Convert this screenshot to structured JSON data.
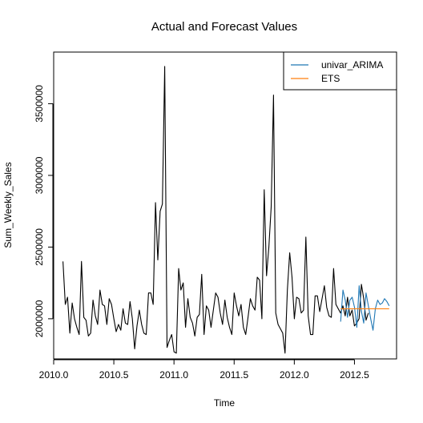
{
  "chart_data": {
    "type": "line",
    "title": "Actual and Forecast Values",
    "xlabel": "Time",
    "ylabel": "Sum_Weekly_Sales",
    "xlim": [
      2010.0,
      2012.85
    ],
    "ylim": [
      1720000,
      3860000
    ],
    "x_ticks": [
      2010.0,
      2010.5,
      2011.0,
      2011.5,
      2012.0,
      2012.5
    ],
    "x_tick_labels": [
      "2010.0",
      "2010.5",
      "2011.0",
      "2011.5",
      "2012.0",
      "2012.5"
    ],
    "y_ticks": [
      2000000,
      2500000,
      3000000,
      3500000
    ],
    "y_tick_labels": [
      "2000000",
      "2500000",
      "3000000",
      "3500000"
    ],
    "grid": false,
    "legend_position": "top-right",
    "series": [
      {
        "name": "",
        "color": "#000000",
        "x_start": 2010.077,
        "x_step": 0.01923,
        "values": [
          2400000,
          2100000,
          2150000,
          1900000,
          2110000,
          2000000,
          1940000,
          1890000,
          2400000,
          2010000,
          1990000,
          1880000,
          1900000,
          2130000,
          2020000,
          1960000,
          2200000,
          2100000,
          2090000,
          1960000,
          2140000,
          2100000,
          2000000,
          1910000,
          1960000,
          1920000,
          2070000,
          1970000,
          1960000,
          2120000,
          2000000,
          1790000,
          1950000,
          2060000,
          1960000,
          1900000,
          1890000,
          2180000,
          2180000,
          2100000,
          2810000,
          2410000,
          2750000,
          2800000,
          3760000,
          1800000,
          1850000,
          1890000,
          1770000,
          1760000,
          2350000,
          2200000,
          2250000,
          1940000,
          2140000,
          2010000,
          1970000,
          1880000,
          2010000,
          2030000,
          2310000,
          1890000,
          2090000,
          2060000,
          1940000,
          2060000,
          2180000,
          2150000,
          2040000,
          1960000,
          2130000,
          2010000,
          1940000,
          1890000,
          2180000,
          2090000,
          2020000,
          2100000,
          1940000,
          1890000,
          2010000,
          2140000,
          2090000,
          2060000,
          2290000,
          2270000,
          2000000,
          2900000,
          2300000,
          2500000,
          2780000,
          3560000,
          2040000,
          1960000,
          1930000,
          1900000,
          1760000,
          2200000,
          2460000,
          2290000,
          2000000,
          2150000,
          2140000,
          2040000,
          2060000,
          2570000,
          2020000,
          1890000,
          1890000,
          2160000,
          2160000,
          2050000,
          2140000,
          2230000,
          2080000,
          2020000,
          2010000,
          2350000,
          2100000,
          2070000,
          2040000,
          2090000,
          2020000,
          2150000,
          2020000,
          2060000,
          1950000,
          1970000,
          2000000,
          2240000,
          2140000,
          1990000,
          2040000
        ]
      },
      {
        "name": "univar_ARIMA",
        "color": "#1f77b4",
        "x_start": 2012.385,
        "x_step": 0.01923,
        "values": [
          1980000,
          2200000,
          2130000,
          2010000,
          2130000,
          2150000,
          2080000,
          1940000,
          2230000,
          2050000,
          1970000,
          2180000,
          2090000,
          2000000,
          1920000,
          2070000,
          2130000,
          2100000,
          2110000,
          2140000,
          2120000,
          2090000
        ]
      },
      {
        "name": "ETS",
        "color": "#ff7f0e",
        "x_start": 2012.385,
        "x_step": 0.01923,
        "values": [
          2070000,
          2070000,
          2070000,
          2070000,
          2070000,
          2070000,
          2070000,
          2070000,
          2070000,
          2070000,
          2070000,
          2070000,
          2070000,
          2070000,
          2070000,
          2070000,
          2070000,
          2070000,
          2070000,
          2070000,
          2070000,
          2070000
        ]
      }
    ]
  }
}
